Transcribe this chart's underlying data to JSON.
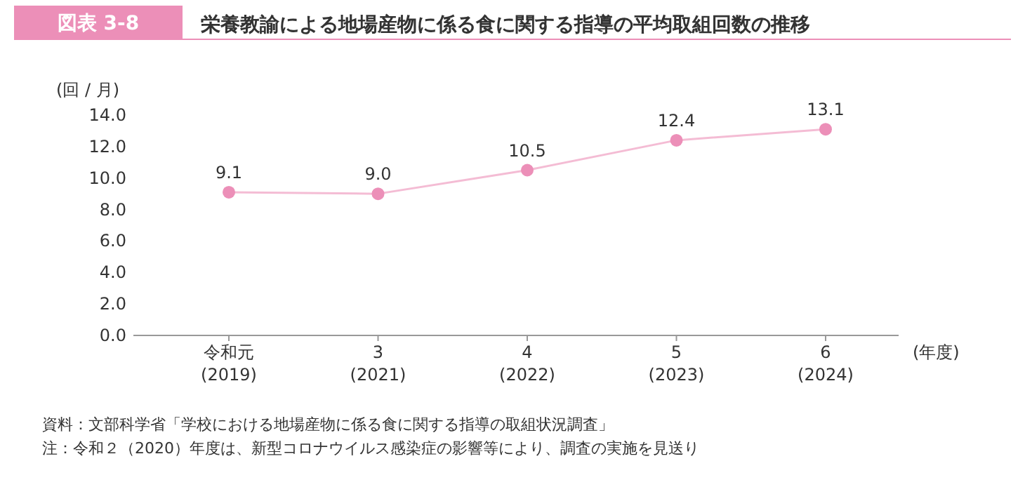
{
  "chart_data": {
    "type": "line",
    "title": "栄養教諭による地場産物に係る食に関する指導の平均取組回数の推移",
    "annotations": [
      "図表 3-8",
      "資料：文部科学省「学校における地場産物に係る食に関する指導の取組状況調査」",
      "注：令和２（2020）年度は、新型コロナウイルス感染症の影響等により、調査の実施を見送り"
    ],
    "categories": [
      "令和元\n(2019)",
      "3\n(2021)",
      "4\n(2022)",
      "5\n(2023)",
      "6\n(2024)"
    ],
    "series": [
      {
        "color": "#ec8fb8",
        "values": [
          9.1,
          9.0,
          10.5,
          12.4,
          13.1
        ],
        "value_labels": [
          "9.1",
          "9.0",
          "10.5",
          "12.4",
          "13.1"
        ]
      }
    ],
    "marker": "circle",
    "ylabel": "(回 / 月)",
    "xlabel": "(年度)",
    "ylim": [
      0,
      14
    ],
    "yticks": [
      {
        "value": 0,
        "label": "0.0"
      },
      {
        "value": 2,
        "label": "2.0"
      },
      {
        "value": 4,
        "label": "4.0"
      },
      {
        "value": 6,
        "label": "6.0"
      },
      {
        "value": 8,
        "label": "8.0"
      },
      {
        "value": 10,
        "label": "10.0"
      },
      {
        "value": 12,
        "label": "12.0"
      },
      {
        "value": 14,
        "label": "14.0"
      }
    ],
    "grid": false
  }
}
